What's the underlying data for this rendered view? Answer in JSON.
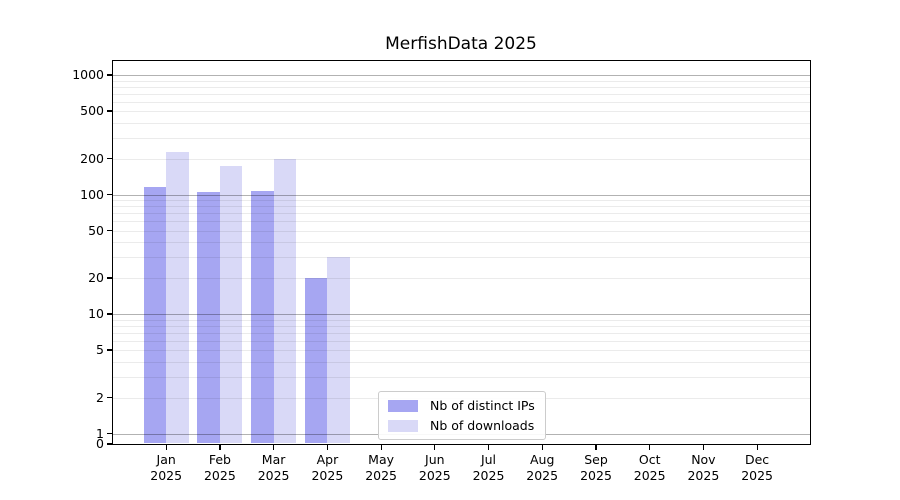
{
  "chart_data": {
    "type": "bar",
    "title": "MerfishData 2025",
    "categories": [
      "Jan",
      "Feb",
      "Mar",
      "Apr",
      "May",
      "Jun",
      "Jul",
      "Aug",
      "Sep",
      "Oct",
      "Nov",
      "Dec"
    ],
    "year_label": "2025",
    "series": [
      {
        "name": "Nb of distinct IPs",
        "color": "#a6a6f2",
        "values": [
          115,
          105,
          107,
          20,
          0,
          0,
          0,
          0,
          0,
          0,
          0,
          0
        ]
      },
      {
        "name": "Nb of downloads",
        "color": "#d9d9f7",
        "values": [
          225,
          175,
          200,
          30,
          0,
          0,
          0,
          0,
          0,
          0,
          0,
          0
        ]
      }
    ],
    "y_scale": "symlog",
    "y_ticks": [
      0,
      1,
      2,
      5,
      10,
      20,
      50,
      100,
      200,
      500,
      1000
    ],
    "ylim": [
      0,
      1300
    ],
    "grid": true,
    "legend_position": "lower center"
  }
}
